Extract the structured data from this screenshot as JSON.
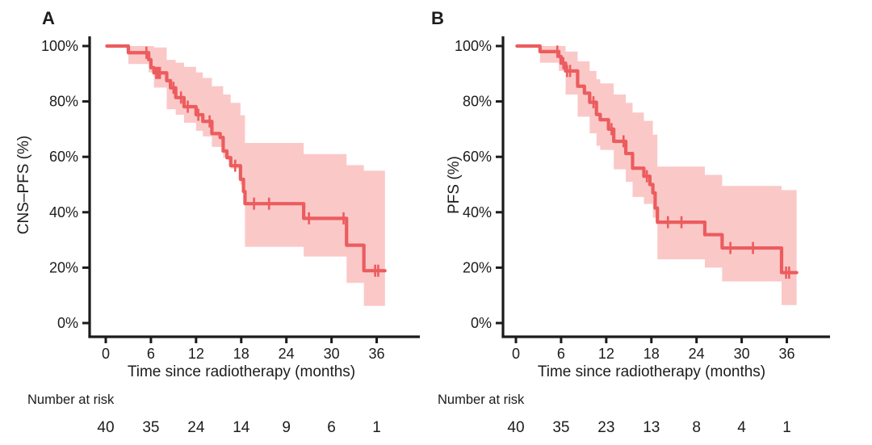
{
  "figure": {
    "x_axis_label": "Time since radiotherapy (months)",
    "number_at_risk_label": "Number at risk",
    "colors": {
      "curve": "#ec5c5e",
      "band": "#fbc8c8",
      "axis": "#1b1b1b",
      "text": "#1c1c1e"
    }
  },
  "chart_data": [
    {
      "type": "line",
      "panel": "A",
      "ylabel": "CNS–PFS (%)",
      "xlabel": "Time since radiotherapy (months)",
      "xlim": [
        0,
        36
      ],
      "ylim": [
        0,
        100
      ],
      "x_ticks": [
        0,
        6,
        12,
        18,
        24,
        30,
        36
      ],
      "x_tick_labels": [
        "0",
        "6",
        "12",
        "18",
        "24",
        "30",
        "36"
      ],
      "y_ticks": [
        100,
        80,
        60,
        40,
        20,
        0
      ],
      "y_tick_labels": [
        "100%",
        "80%",
        "60%",
        "40%",
        "20%",
        "0%"
      ],
      "grid": false,
      "legend": "none",
      "number_at_risk_label": "Number at risk",
      "risk_times": [
        0,
        6,
        12,
        18,
        24,
        30,
        36
      ],
      "number_at_risk": [
        40,
        35,
        24,
        14,
        9,
        6,
        1
      ],
      "steps": [
        [
          0,
          100
        ],
        [
          3.0,
          97.6
        ],
        [
          5.7,
          95.1
        ],
        [
          6.0,
          92.2
        ],
        [
          6.4,
          90.3
        ],
        [
          8.1,
          87.5
        ],
        [
          8.6,
          84.9
        ],
        [
          9.3,
          81.4
        ],
        [
          10.4,
          78.1
        ],
        [
          12.0,
          75.2
        ],
        [
          12.9,
          72.8
        ],
        [
          14.1,
          68.4
        ],
        [
          15.2,
          67.0
        ],
        [
          15.6,
          62.1
        ],
        [
          16.1,
          59.7
        ],
        [
          16.6,
          56.8
        ],
        [
          17.9,
          51.9
        ],
        [
          18.3,
          47.5
        ],
        [
          18.5,
          43.1
        ],
        [
          26.3,
          37.8
        ],
        [
          32.0,
          28.1
        ],
        [
          34.3,
          18.9
        ]
      ],
      "end_time": 37.1,
      "censors": [
        [
          5.4,
          97.6
        ],
        [
          6.7,
          90.3
        ],
        [
          6.95,
          90.3
        ],
        [
          7.2,
          90.3
        ],
        [
          9.0,
          84.9
        ],
        [
          10.0,
          81.4
        ],
        [
          10.9,
          78.1
        ],
        [
          12.3,
          75.2
        ],
        [
          13.8,
          72.8
        ],
        [
          17.2,
          56.8
        ],
        [
          19.7,
          43.1
        ],
        [
          21.7,
          43.1
        ],
        [
          27.0,
          37.8
        ],
        [
          31.6,
          37.8
        ],
        [
          35.8,
          18.9
        ],
        [
          36.2,
          18.9
        ]
      ],
      "confidence_band": [
        [
          3.0,
          93.5,
          100
        ],
        [
          5.7,
          90.5,
          100
        ],
        [
          6.4,
          85.0,
          99.5
        ],
        [
          8.1,
          77.2,
          95.0
        ],
        [
          9.3,
          75.2,
          94.0
        ],
        [
          10.4,
          72.3,
          92.5
        ],
        [
          12.0,
          69.4,
          90.5
        ],
        [
          12.9,
          67.4,
          88.5
        ],
        [
          14.1,
          63.6,
          85.5
        ],
        [
          15.6,
          59.7,
          82.5
        ],
        [
          16.6,
          55.8,
          79.5
        ],
        [
          17.9,
          50.0,
          75.0
        ],
        [
          18.5,
          27.5,
          65.0
        ],
        [
          26.3,
          24.0,
          61.0
        ],
        [
          32.0,
          14.5,
          57.0
        ],
        [
          34.3,
          6.2,
          55.0
        ]
      ]
    },
    {
      "type": "line",
      "panel": "B",
      "ylabel": "PFS (%)",
      "xlabel": "Time since radiotherapy (months)",
      "xlim": [
        0,
        36
      ],
      "ylim": [
        0,
        100
      ],
      "x_ticks": [
        0,
        6,
        12,
        18,
        24,
        30,
        36
      ],
      "x_tick_labels": [
        "0",
        "6",
        "12",
        "18",
        "24",
        "30",
        "36"
      ],
      "y_ticks": [
        100,
        80,
        60,
        40,
        20,
        0
      ],
      "y_tick_labels": [
        "100%",
        "80%",
        "60%",
        "40%",
        "20%",
        "0%"
      ],
      "grid": false,
      "legend": "none",
      "number_at_risk_label": "Number at risk",
      "risk_times": [
        0,
        6,
        12,
        18,
        24,
        30,
        36
      ],
      "number_at_risk": [
        40,
        35,
        23,
        13,
        8,
        4,
        1
      ],
      "steps": [
        [
          0,
          100
        ],
        [
          3.2,
          98.0
        ],
        [
          5.7,
          96.2
        ],
        [
          6.0,
          93.8
        ],
        [
          6.6,
          91.0
        ],
        [
          8.2,
          85.5
        ],
        [
          9.1,
          83.0
        ],
        [
          9.8,
          79.7
        ],
        [
          10.7,
          75.3
        ],
        [
          11.2,
          73.4
        ],
        [
          12.3,
          70.0
        ],
        [
          13.0,
          65.6
        ],
        [
          14.6,
          61.2
        ],
        [
          15.5,
          55.9
        ],
        [
          17.0,
          53.0
        ],
        [
          17.8,
          50.0
        ],
        [
          18.2,
          47.0
        ],
        [
          18.5,
          41.5
        ],
        [
          18.8,
          36.4
        ],
        [
          25.1,
          31.9
        ],
        [
          27.4,
          27.1
        ],
        [
          35.3,
          18.2
        ]
      ],
      "end_time": 37.3,
      "censors": [
        [
          5.5,
          98.0
        ],
        [
          6.3,
          93.8
        ],
        [
          6.8,
          91.0
        ],
        [
          7.2,
          91.0
        ],
        [
          10.3,
          79.7
        ],
        [
          12.7,
          70.0
        ],
        [
          14.3,
          65.6
        ],
        [
          17.4,
          53.0
        ],
        [
          20.2,
          36.4
        ],
        [
          22.0,
          36.4
        ],
        [
          28.5,
          27.1
        ],
        [
          31.5,
          27.1
        ],
        [
          35.9,
          18.2
        ],
        [
          36.3,
          18.2
        ]
      ],
      "confidence_band": [
        [
          3.2,
          94.0,
          100
        ],
        [
          5.7,
          91.0,
          100
        ],
        [
          6.6,
          82.5,
          98.0
        ],
        [
          8.2,
          74.5,
          94.5
        ],
        [
          9.8,
          68.5,
          91.0
        ],
        [
          10.7,
          64.0,
          88.0
        ],
        [
          11.2,
          62.5,
          86.5
        ],
        [
          13.0,
          55.5,
          82.5
        ],
        [
          14.6,
          51.0,
          79.5
        ],
        [
          15.5,
          45.5,
          76.0
        ],
        [
          17.0,
          43.0,
          73.0
        ],
        [
          18.2,
          38.0,
          68.0
        ],
        [
          18.8,
          23.0,
          56.5
        ],
        [
          25.1,
          20.0,
          53.5
        ],
        [
          27.4,
          15.0,
          49.5
        ],
        [
          35.3,
          6.5,
          48.0
        ]
      ]
    }
  ]
}
